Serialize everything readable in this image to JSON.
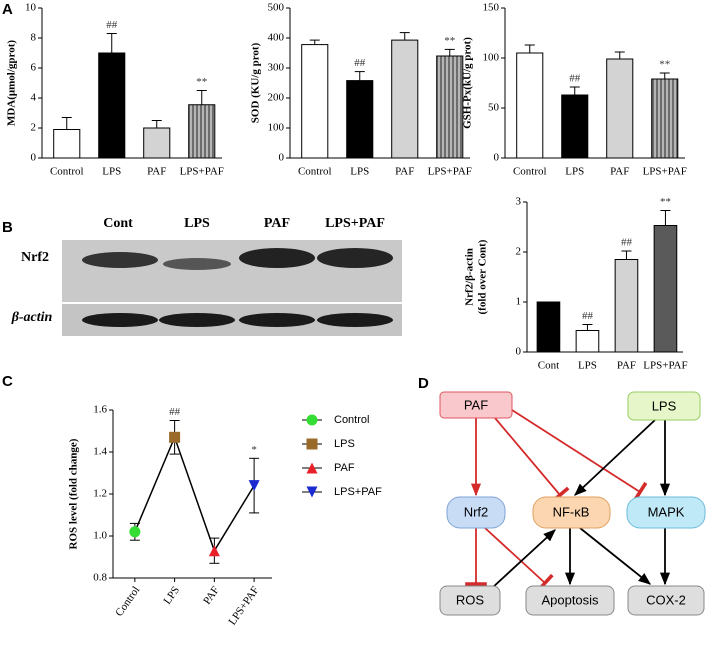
{
  "panels": [
    "A",
    "B",
    "C",
    "D"
  ],
  "blot": {
    "lanes": [
      "Cont",
      "LPS",
      "PAF",
      "LPS+PAF"
    ],
    "rows": [
      "Nrf2",
      "β-actin"
    ]
  },
  "diagram": {
    "nodes": [
      "PAF",
      "LPS",
      "Nrf2",
      "NF-κB",
      "MAPK",
      "ROS",
      "Apoptosis",
      "COX-2"
    ]
  },
  "chart_data": [
    {
      "type": "bar",
      "ylabel": "MDA(μmol/gprot)",
      "categories": [
        "Control",
        "LPS",
        "PAF",
        "LPS+PAF"
      ],
      "values": [
        1.9,
        7.0,
        2.0,
        3.55
      ],
      "errors": [
        0.8,
        1.3,
        0.5,
        0.95
      ],
      "annotations": [
        null,
        "##",
        null,
        "**"
      ],
      "colors": [
        "#ffffff",
        "#000000",
        "#d3d3d3",
        "#555555"
      ],
      "hatched": [
        false,
        false,
        false,
        true
      ],
      "ylim": [
        0,
        10
      ],
      "yticks": [
        0,
        2,
        4,
        6,
        8,
        10
      ]
    },
    {
      "type": "bar",
      "ylabel": "SOD (KU/g prot)",
      "categories": [
        "Control",
        "LPS",
        "PAF",
        "LPS+PAF"
      ],
      "values": [
        378,
        258,
        393,
        340
      ],
      "errors": [
        15,
        30,
        25,
        22
      ],
      "annotations": [
        null,
        "##",
        null,
        "**"
      ],
      "colors": [
        "#ffffff",
        "#000000",
        "#d3d3d3",
        "#555555"
      ],
      "hatched": [
        false,
        false,
        false,
        true
      ],
      "ylim": [
        0,
        500
      ],
      "yticks": [
        0,
        100,
        200,
        300,
        400,
        500
      ]
    },
    {
      "type": "bar",
      "ylabel": "GSH-Px(kU/g prot)",
      "categories": [
        "Control",
        "LPS",
        "PAF",
        "LPS+PAF"
      ],
      "values": [
        105,
        63,
        99,
        79
      ],
      "errors": [
        8,
        8,
        7,
        6
      ],
      "annotations": [
        null,
        "##",
        null,
        "**"
      ],
      "colors": [
        "#ffffff",
        "#000000",
        "#d3d3d3",
        "#555555"
      ],
      "hatched": [
        false,
        false,
        false,
        true
      ],
      "ylim": [
        0,
        150
      ],
      "yticks": [
        0,
        50,
        100,
        150
      ]
    },
    {
      "type": "bar",
      "ylabel": [
        "Nrf2/β-actin",
        "(fold over Cont)"
      ],
      "categories": [
        "Cont",
        "LPS",
        "PAF",
        "LPS+PAF"
      ],
      "values": [
        1.0,
        0.43,
        1.85,
        2.53
      ],
      "errors": [
        null,
        0.12,
        0.17,
        0.3
      ],
      "annotations": [
        null,
        "##",
        "##",
        "**"
      ],
      "colors": [
        "#000000",
        "#ffffff",
        "#d3d3d3",
        "#5a5a5a"
      ],
      "hatched": [
        false,
        false,
        false,
        false
      ],
      "ylim": [
        0,
        3
      ],
      "yticks": [
        0,
        1,
        2,
        3
      ]
    },
    {
      "type": "line",
      "ylabel": "ROS level (fold change)",
      "categories": [
        "Control",
        "LPS",
        "PAF",
        "LPS+PAF"
      ],
      "values": [
        1.02,
        1.47,
        0.93,
        1.24
      ],
      "errors": [
        0.04,
        0.08,
        0.06,
        0.13
      ],
      "annotations": [
        null,
        "##",
        null,
        "*"
      ],
      "colors": [
        "#33dd33",
        "#9a6a2a",
        "#e8202a",
        "#1a2ad0"
      ],
      "markers": [
        "circle",
        "square",
        "triangle",
        "triangle-down"
      ],
      "line_color": "#000000",
      "ylim": [
        0.8,
        1.6
      ],
      "yticks": [
        0.8,
        {
          "value": 1.0,
          "label": "1.0"
        },
        1.2,
        1.4,
        1.6
      ]
    }
  ]
}
